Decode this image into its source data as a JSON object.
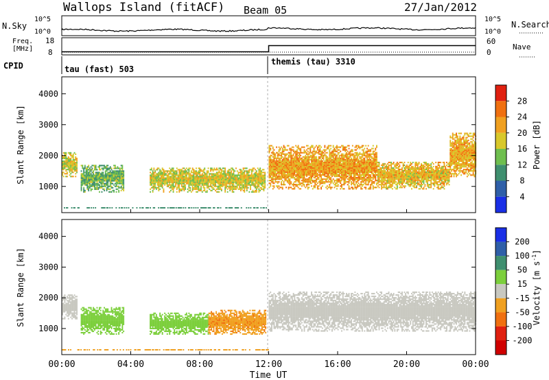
{
  "header": {
    "site": "Wallops Island (fitACF)",
    "beam": "Beam 05",
    "date": "27/Jan/2012"
  },
  "noise_panel": {
    "left_label": "N.Sky",
    "right_label": "N.Search",
    "left_ticks": [
      "10^5",
      "10^0"
    ],
    "right_ticks": [
      "10^5",
      "10^0"
    ]
  },
  "freq_panel": {
    "label_line1": "Freq.",
    "label_line2": "[MHz]",
    "left_ticks": [
      "18",
      "8"
    ],
    "right_ticks": [
      "60",
      "0"
    ],
    "right_label": "Nave",
    "freq_mhz": [
      {
        "from": "00:00",
        "to": "12:00",
        "value": 10.5
      },
      {
        "from": "12:00",
        "to": "24:00",
        "value": 15.5
      }
    ]
  },
  "cpid": {
    "label": "CPID",
    "segments": [
      {
        "start": "00:00",
        "text": "tau (fast) 503"
      },
      {
        "start": "12:00",
        "text": "themis (tau) 3310"
      }
    ]
  },
  "x_axis": {
    "title": "Time UT",
    "ticks": [
      "00:00",
      "04:00",
      "08:00",
      "12:00",
      "16:00",
      "20:00",
      "00:00"
    ]
  },
  "chart_data": [
    {
      "type": "heatmap",
      "title": "Power",
      "ylabel": "Slant Range [km]",
      "ylim": [
        150,
        4550
      ],
      "xlim_hours": [
        0,
        24
      ],
      "y_ticks": [
        "1000",
        "2000",
        "3000",
        "4000"
      ],
      "colorbar": {
        "label": "Power [dB]",
        "ticks": [
          "4",
          "8",
          "12",
          "16",
          "20",
          "24",
          "28"
        ],
        "colors": [
          "#1a2fe6",
          "#2f5fa8",
          "#3f8f6f",
          "#6fbf4f",
          "#d8c82a",
          "#f0a020",
          "#f07010",
          "#e02010"
        ]
      },
      "echo_regions": [
        {
          "t_start": 0.0,
          "t_end": 0.9,
          "range_low": 1300,
          "range_high": 2100,
          "power_db": 18
        },
        {
          "t_start": 1.1,
          "t_end": 3.6,
          "range_low": 800,
          "range_high": 1700,
          "power_db": 13
        },
        {
          "t_start": 5.1,
          "t_end": 11.8,
          "range_low": 800,
          "range_high": 1600,
          "power_db": 18
        },
        {
          "t_start": 12.0,
          "t_end": 18.3,
          "range_low": 900,
          "range_high": 2300,
          "power_db": 22
        },
        {
          "t_start": 18.3,
          "t_end": 22.5,
          "range_low": 900,
          "range_high": 1800,
          "power_db": 20
        },
        {
          "t_start": 22.5,
          "t_end": 24.0,
          "range_low": 1300,
          "range_high": 2700,
          "power_db": 21
        }
      ]
    },
    {
      "type": "heatmap",
      "title": "Velocity",
      "ylabel": "Slant Range [km]",
      "ylim": [
        150,
        4550
      ],
      "xlim_hours": [
        0,
        24
      ],
      "y_ticks": [
        "1000",
        "2000",
        "3000",
        "4000"
      ],
      "colorbar": {
        "label_main": "Velocity",
        "label_unit": "[m s",
        "label_exp": "-1",
        "label_close": "]",
        "ticks": [
          "200",
          "100",
          "50",
          "15",
          "-15",
          "-50",
          "-100",
          "-200"
        ],
        "colors": [
          "#1a2fe6",
          "#2f5fa8",
          "#3f8f6f",
          "#7ccf3c",
          "#c8c8c0",
          "#f0a020",
          "#f07010",
          "#e02010",
          "#d00000"
        ]
      },
      "echo_regions": [
        {
          "t_start": 0.0,
          "t_end": 0.9,
          "range_low": 1300,
          "range_high": 2100,
          "velocity_ms": 0
        },
        {
          "t_start": 1.1,
          "t_end": 3.6,
          "range_low": 800,
          "range_high": 1700,
          "velocity_ms": 30
        },
        {
          "t_start": 5.1,
          "t_end": 8.5,
          "range_low": 800,
          "range_high": 1500,
          "velocity_ms": 30
        },
        {
          "t_start": 8.5,
          "t_end": 11.8,
          "range_low": 800,
          "range_high": 1600,
          "velocity_ms": -40
        },
        {
          "t_start": 12.0,
          "t_end": 24.0,
          "range_low": 900,
          "range_high": 2200,
          "velocity_ms": 0
        }
      ]
    }
  ]
}
